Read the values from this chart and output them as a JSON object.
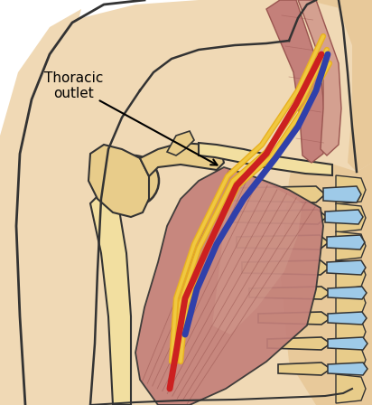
{
  "bg": "#FFFFFF",
  "skin": "#F0D9B5",
  "skin_shadow": "#E8C99A",
  "skin_dark": "#DDB882",
  "bone": "#E8CC8A",
  "bone_light": "#F2DFA0",
  "bone_dark": "#C8A860",
  "bone_outline": "#333333",
  "muscle_base": "#C4807A",
  "muscle_light": "#D4A090",
  "muscle_dark": "#9A5550",
  "muscle_stripe": "#B87070",
  "cartilage": "#9ECAE8",
  "cartilage_dark": "#6AAAC8",
  "artery": "#CC2020",
  "vein": "#3040AA",
  "nerve1": "#E8B020",
  "nerve2": "#F0C840",
  "nerve3": "#D8A010",
  "label_text": "Thoracic\noutlet",
  "label_fontsize": 11
}
